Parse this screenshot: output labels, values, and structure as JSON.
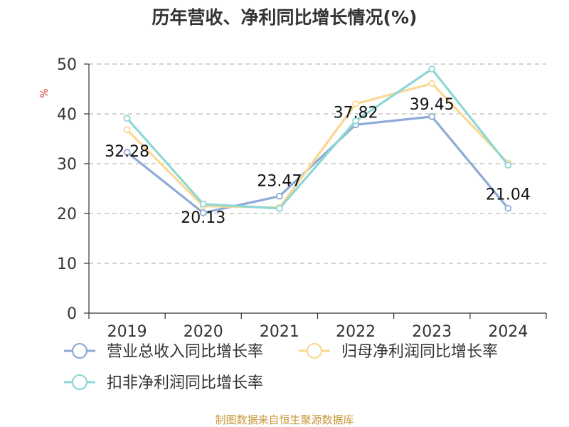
{
  "chart_data": {
    "type": "line",
    "title": "历年营收、净利同比增长情况(%)",
    "ylabel": "%",
    "categories": [
      "2019",
      "2020",
      "2021",
      "2022",
      "2023",
      "2024"
    ],
    "ylim": [
      0,
      50
    ],
    "yticks": [
      0,
      10,
      20,
      30,
      40,
      50
    ],
    "grid": true,
    "legend_position": "bottom",
    "series": [
      {
        "name": "营业总收入同比增长率",
        "color": "#8eaad6",
        "values": [
          32.28,
          20.13,
          23.47,
          37.82,
          39.45,
          21.04
        ],
        "show_labels": true
      },
      {
        "name": "归母净利润同比增长率",
        "color": "#fad892",
        "values": [
          36.8,
          21.5,
          21.2,
          42.0,
          46.1,
          30.1
        ],
        "show_labels": false
      },
      {
        "name": "扣非净利润同比增长率",
        "color": "#8ed7d5",
        "values": [
          39.1,
          21.9,
          21.0,
          38.6,
          49.0,
          29.7
        ],
        "show_labels": false
      }
    ],
    "source": "制图数据来自恒生聚源数据库",
    "source_color": "#c8973a",
    "ylabel_color": "#d23a2a"
  }
}
